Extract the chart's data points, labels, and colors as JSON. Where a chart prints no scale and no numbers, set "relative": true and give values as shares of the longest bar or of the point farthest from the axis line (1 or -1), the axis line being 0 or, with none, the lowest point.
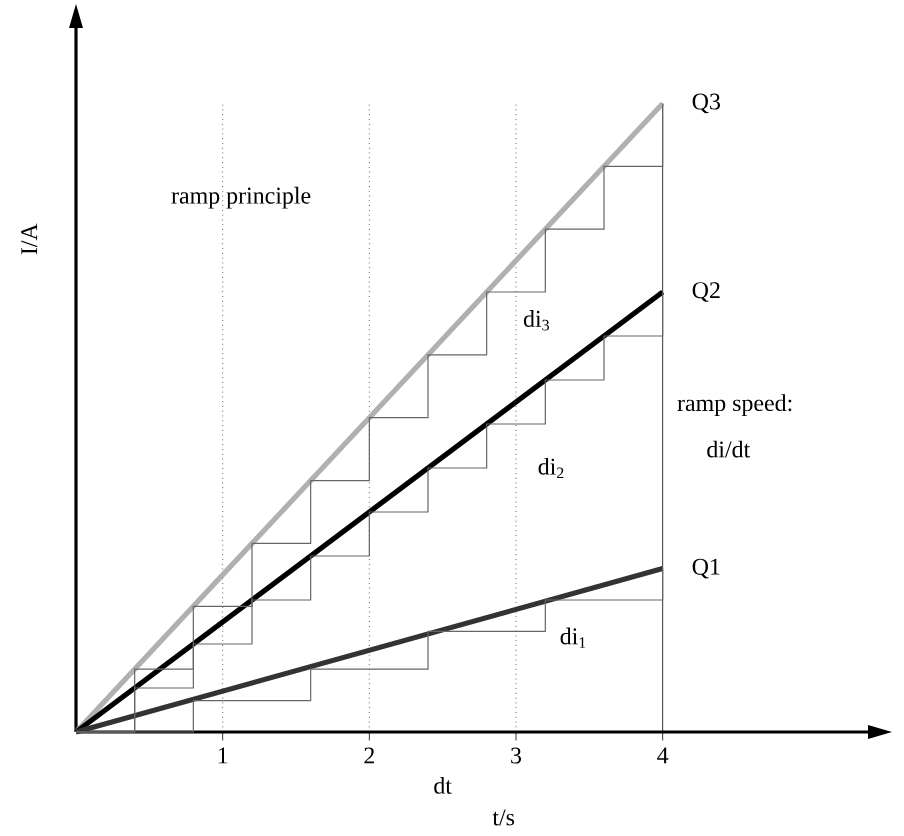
{
  "chart_data": {
    "type": "line",
    "relative": true,
    "xlabel": "t/s",
    "ylabel": "I/A",
    "xlim": [
      0,
      5.4
    ],
    "xticks": [
      1,
      2,
      3,
      4
    ],
    "tick_labels": "x",
    "legend": false,
    "marker": "none",
    "line_style": "solid",
    "series": [
      {
        "name": "Q3",
        "color": "#b0b0b0",
        "x": [
          0,
          4
        ],
        "values": [
          0,
          1
        ]
      },
      {
        "name": "Q2",
        "color": "#000000",
        "x": [
          0,
          4
        ],
        "values": [
          0,
          0.7
        ]
      },
      {
        "name": "Q1",
        "color": "#333333",
        "x": [
          0,
          4
        ],
        "values": [
          0,
          0.26
        ]
      },
      {
        "type": "step",
        "color": "#666666",
        "x": [
          0,
          0.4,
          0.8,
          1.2,
          1.6,
          2.0,
          2.4,
          2.8,
          3.2,
          3.6,
          4.0
        ],
        "values": [
          0,
          0.1,
          0.2,
          0.3,
          0.4,
          0.5,
          0.6,
          0.7,
          0.8,
          0.9,
          1.0
        ]
      },
      {
        "type": "step",
        "color": "#666666",
        "x": [
          0,
          0.4,
          0.8,
          1.2,
          1.6,
          2.0,
          2.4,
          2.8,
          3.2,
          3.6,
          4.0
        ],
        "values": [
          0,
          0.07,
          0.14,
          0.21,
          0.28,
          0.35,
          0.42,
          0.49,
          0.56,
          0.63,
          0.7
        ]
      },
      {
        "type": "step",
        "color": "#666666",
        "x": [
          0,
          0.8,
          1.6,
          2.4,
          3.2,
          4.0
        ],
        "values": [
          0,
          0.05,
          0.1,
          0.16,
          0.21,
          0.26
        ]
      }
    ],
    "ref_lines": [
      {
        "axis": "x",
        "value": 1,
        "line_style": "dotted"
      },
      {
        "axis": "x",
        "value": 2,
        "line_style": "dotted"
      },
      {
        "axis": "x",
        "value": 3,
        "line_style": "dotted"
      },
      {
        "axis": "x",
        "value": 4,
        "line_style": "solid"
      }
    ],
    "annotations": [
      "ramp principle",
      "ramp speed:",
      "di/dt",
      "di$_{3}$",
      "di$_{2}$",
      "di$_{1}$",
      "dt"
    ]
  }
}
